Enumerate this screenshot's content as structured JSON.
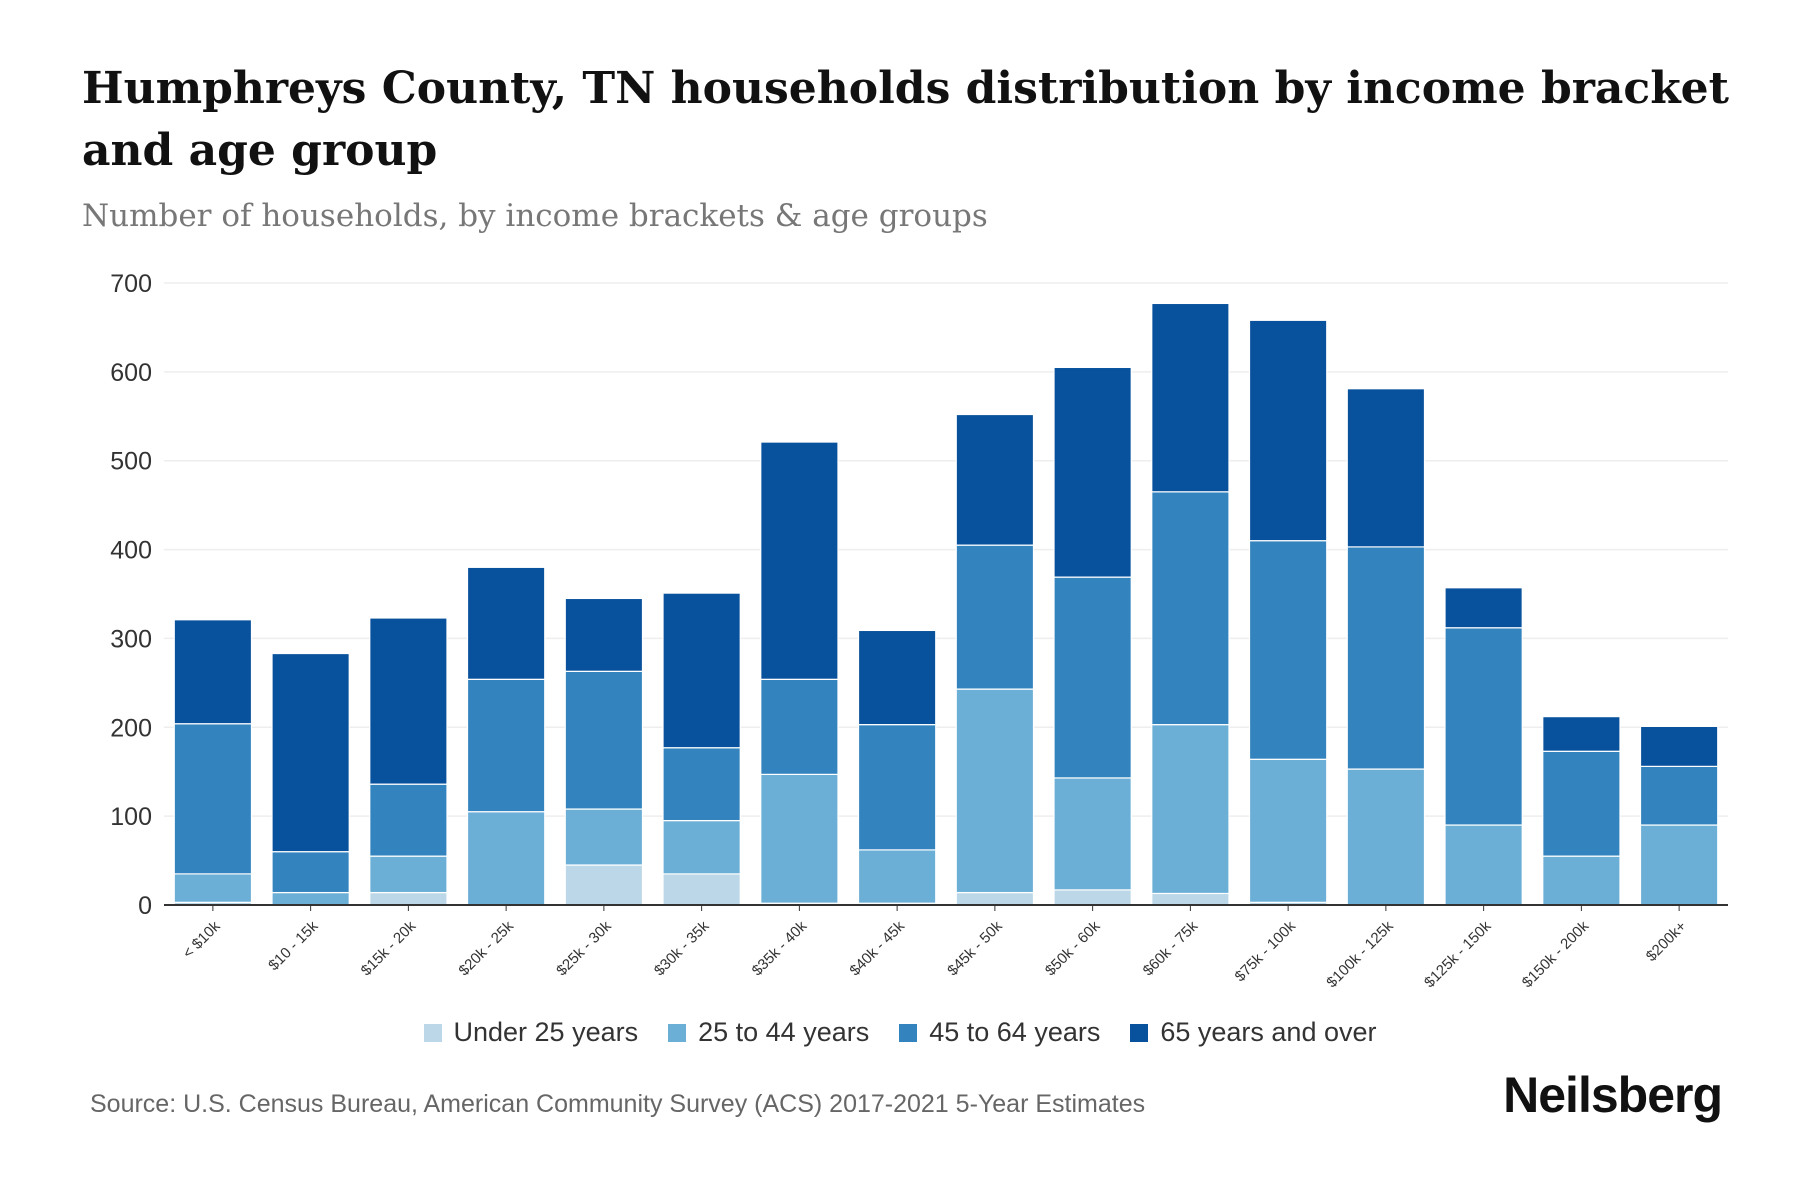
{
  "title": "Humphreys County, TN households distribution by income bracket and age group",
  "subtitle": "Number of households, by income brackets & age groups",
  "source": "Source: U.S. Census Bureau, American Community Survey (ACS) 2017-2021 5-Year Estimates",
  "logo": "Neilsberg",
  "chart_data": {
    "type": "bar",
    "stacked": true,
    "title": "Humphreys County, TN households distribution by income bracket and age group",
    "xlabel": "",
    "ylabel": "Number of households",
    "ylim": [
      0,
      700
    ],
    "yticks": [
      "0",
      "100",
      "200",
      "300",
      "400",
      "500",
      "600",
      "700"
    ],
    "grid": true,
    "legend_position": "bottom",
    "categories": [
      "< $10k",
      "$10 - 15k",
      "$15k - 20k",
      "$20k - 25k",
      "$25k - 30k",
      "$30k - 35k",
      "$35k - 40k",
      "$40k - 45k",
      "$45k - 50k",
      "$50k - 60k",
      "$60k - 75k",
      "$75k - 100k",
      "$100k - 125k",
      "$125k - 150k",
      "$150k - 200k",
      "$200k+"
    ],
    "series": [
      {
        "name": "Under 25 years",
        "color": "#bcd8e8",
        "values": [
          3,
          0,
          14,
          0,
          45,
          35,
          2,
          2,
          14,
          17,
          13,
          3,
          0,
          0,
          0,
          0
        ]
      },
      {
        "name": "25 to 44 years",
        "color": "#6baed6",
        "values": [
          32,
          14,
          41,
          105,
          63,
          60,
          145,
          60,
          229,
          126,
          190,
          161,
          153,
          90,
          55,
          90
        ]
      },
      {
        "name": "45 to 64 years",
        "color": "#3383be",
        "values": [
          169,
          46,
          81,
          149,
          155,
          82,
          107,
          141,
          162,
          226,
          262,
          246,
          250,
          222,
          118,
          66
        ]
      },
      {
        "name": "65 years and over",
        "color": "#08519c",
        "values": [
          117,
          223,
          187,
          126,
          82,
          174,
          267,
          106,
          147,
          236,
          212,
          248,
          178,
          45,
          39,
          45
        ]
      }
    ]
  }
}
